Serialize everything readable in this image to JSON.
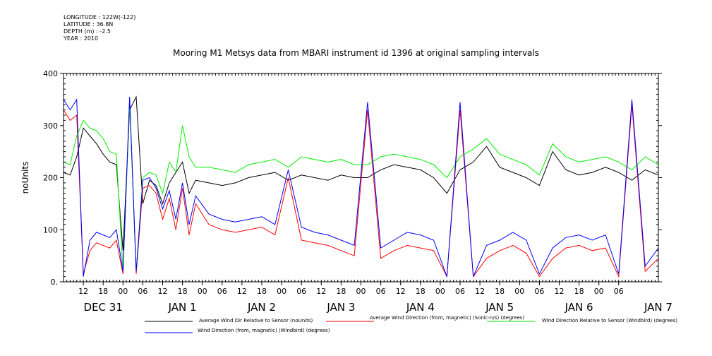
{
  "header_meta": {
    "longitude": "LONGITUDE : 122W(-122)",
    "latitude": "LATITUDE : 36.8N",
    "depth": "DEPTH (m) : -2.5",
    "year": "YEAR : 2010"
  },
  "chart_data": {
    "type": "line",
    "title": "Mooring M1 Metsys data from MBARI instrument id 1396 at original sampling intervals",
    "ylabel": "noUnits",
    "xlabel": "",
    "ylim": [
      0,
      400
    ],
    "xlim_hours": [
      0,
      180
    ],
    "y_ticks": [
      "0.",
      "100",
      "200",
      "300",
      "400"
    ],
    "x_hour_ticks": [
      "12",
      "18",
      "00",
      "06",
      "12",
      "18",
      "00",
      "06",
      "12",
      "18",
      "00",
      "06",
      "12",
      "18",
      "00",
      "06",
      "12",
      "18",
      "00",
      "06",
      "12",
      "18",
      "00",
      "06",
      "12",
      "18",
      "00",
      "06"
    ],
    "x_day_labels": [
      "DEC 31",
      "JAN  1",
      "JAN  2",
      "JAN  3",
      "JAN  4",
      "JAN  5",
      "JAN  6",
      "JAN  7"
    ],
    "grid": false,
    "legend_position": "bottom",
    "series": [
      {
        "name": "Average Wind Dir Relative to Sensor (noUnits)",
        "color": "#000000",
        "x": [
          0,
          2,
          4,
          6,
          8,
          10,
          12,
          14,
          16,
          18,
          20,
          22,
          24,
          26,
          28,
          30,
          32,
          34,
          36,
          38,
          40,
          44,
          48,
          52,
          56,
          60,
          64,
          68,
          72,
          76,
          80,
          84,
          88,
          92,
          96,
          100,
          104,
          108,
          112,
          116,
          120,
          124,
          128,
          132,
          136,
          140,
          144,
          148,
          152,
          156,
          160,
          164,
          168,
          172,
          176,
          180
        ],
        "values": [
          210,
          205,
          240,
          295,
          280,
          265,
          245,
          230,
          225,
          60,
          330,
          355,
          150,
          195,
          185,
          150,
          190,
          210,
          230,
          170,
          195,
          190,
          185,
          190,
          200,
          205,
          210,
          195,
          205,
          200,
          195,
          205,
          200,
          200,
          215,
          225,
          220,
          215,
          200,
          170,
          215,
          230,
          260,
          220,
          210,
          200,
          185,
          250,
          215,
          205,
          210,
          220,
          210,
          195,
          215,
          205
        ]
      },
      {
        "name": "Average Wind Direction (from, magnetic) (Sonic-n/s) (degrees)",
        "color": "#ff0000",
        "x": [
          0,
          2,
          4,
          6,
          8,
          10,
          12,
          14,
          16,
          18,
          20,
          22,
          24,
          26,
          28,
          30,
          32,
          34,
          36,
          38,
          40,
          44,
          48,
          52,
          56,
          60,
          64,
          68,
          72,
          76,
          80,
          84,
          88,
          92,
          96,
          100,
          104,
          108,
          112,
          116,
          120,
          124,
          128,
          132,
          136,
          140,
          144,
          148,
          152,
          156,
          160,
          164,
          168,
          172,
          176,
          180
        ],
        "values": [
          330,
          310,
          320,
          15,
          60,
          75,
          70,
          65,
          80,
          15,
          350,
          15,
          180,
          185,
          170,
          120,
          160,
          100,
          180,
          90,
          150,
          110,
          100,
          95,
          100,
          105,
          90,
          200,
          80,
          75,
          70,
          60,
          50,
          330,
          45,
          60,
          70,
          65,
          60,
          10,
          330,
          10,
          45,
          60,
          70,
          55,
          10,
          45,
          65,
          70,
          60,
          65,
          10,
          340,
          20,
          45
        ]
      },
      {
        "name": "Wind Direction Relative to Sensor (Windbird) (degrees)",
        "color": "#00ee00",
        "x": [
          0,
          2,
          4,
          6,
          8,
          10,
          12,
          14,
          16,
          18,
          20,
          22,
          24,
          26,
          28,
          30,
          32,
          34,
          36,
          38,
          40,
          44,
          48,
          52,
          56,
          60,
          64,
          68,
          72,
          76,
          80,
          84,
          88,
          92,
          96,
          100,
          104,
          108,
          112,
          116,
          120,
          124,
          128,
          132,
          136,
          140,
          144,
          148,
          152,
          156,
          160,
          164,
          168,
          172,
          176,
          180
        ],
        "values": [
          230,
          225,
          280,
          310,
          295,
          290,
          275,
          250,
          245,
          20,
          345,
          20,
          200,
          210,
          205,
          170,
          230,
          210,
          300,
          240,
          220,
          220,
          215,
          210,
          225,
          230,
          235,
          220,
          240,
          235,
          230,
          235,
          225,
          225,
          240,
          245,
          240,
          235,
          225,
          200,
          240,
          255,
          275,
          245,
          235,
          225,
          205,
          265,
          240,
          230,
          235,
          240,
          230,
          215,
          240,
          225
        ]
      },
      {
        "name": "Wind Direction (from, magnetic) (Windbird) (degrees)",
        "color": "#0000ff",
        "x": [
          0,
          2,
          4,
          6,
          8,
          10,
          12,
          14,
          16,
          18,
          20,
          22,
          24,
          26,
          28,
          30,
          32,
          34,
          36,
          38,
          40,
          44,
          48,
          52,
          56,
          60,
          64,
          68,
          72,
          76,
          80,
          84,
          88,
          92,
          96,
          100,
          104,
          108,
          112,
          116,
          120,
          124,
          128,
          132,
          136,
          140,
          144,
          148,
          152,
          156,
          160,
          164,
          168,
          172,
          176,
          180
        ],
        "values": [
          350,
          330,
          350,
          10,
          80,
          95,
          90,
          85,
          100,
          20,
          355,
          20,
          195,
          200,
          180,
          140,
          175,
          120,
          190,
          110,
          165,
          130,
          120,
          115,
          120,
          125,
          110,
          215,
          105,
          95,
          90,
          80,
          70,
          345,
          65,
          80,
          95,
          90,
          80,
          10,
          345,
          10,
          70,
          80,
          95,
          80,
          15,
          65,
          85,
          90,
          80,
          90,
          15,
          350,
          30,
          65
        ]
      }
    ]
  }
}
